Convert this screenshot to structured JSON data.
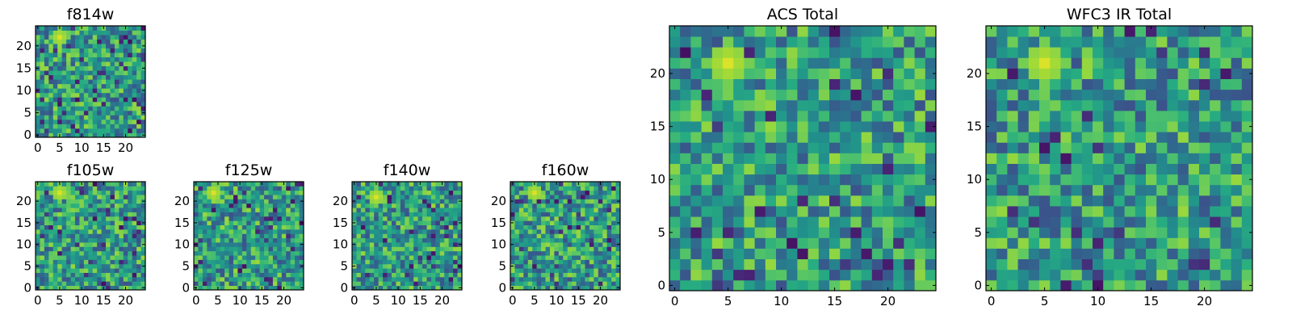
{
  "chart_data": [
    {
      "type": "heatmap",
      "id": "f814w",
      "title": "f814w",
      "grid_size": 25,
      "xlim": [
        -0.5,
        24.5
      ],
      "ylim": [
        -0.5,
        24.5
      ],
      "xticks": [
        0,
        5,
        10,
        15,
        20
      ],
      "yticks": [
        0,
        5,
        10,
        15,
        20
      ],
      "colormap": "viridis",
      "bright_spot": {
        "x": 5,
        "y": 22
      },
      "seed": 814
    },
    {
      "type": "heatmap",
      "id": "f105w",
      "title": "f105w",
      "grid_size": 25,
      "xlim": [
        -0.5,
        24.5
      ],
      "ylim": [
        -0.5,
        24.5
      ],
      "xticks": [
        0,
        5,
        10,
        15,
        20
      ],
      "yticks": [
        0,
        5,
        10,
        15,
        20
      ],
      "colormap": "viridis",
      "bright_spot": {
        "x": 5,
        "y": 22
      },
      "seed": 105
    },
    {
      "type": "heatmap",
      "id": "f125w",
      "title": "f125w",
      "grid_size": 25,
      "xlim": [
        -0.5,
        24.5
      ],
      "ylim": [
        -0.5,
        24.5
      ],
      "xticks": [
        0,
        5,
        10,
        15,
        20
      ],
      "yticks": [
        0,
        5,
        10,
        15,
        20
      ],
      "colormap": "viridis",
      "bright_spot": {
        "x": 4,
        "y": 22
      },
      "seed": 125
    },
    {
      "type": "heatmap",
      "id": "f140w",
      "title": "f140w",
      "grid_size": 25,
      "xlim": [
        -0.5,
        24.5
      ],
      "ylim": [
        -0.5,
        24.5
      ],
      "xticks": [
        0,
        5,
        10,
        15,
        20
      ],
      "yticks": [
        0,
        5,
        10,
        15,
        20
      ],
      "colormap": "viridis",
      "bright_spot": {
        "x": 5,
        "y": 21
      },
      "seed": 140
    },
    {
      "type": "heatmap",
      "id": "f160w",
      "title": "f160w",
      "grid_size": 25,
      "xlim": [
        -0.5,
        24.5
      ],
      "ylim": [
        -0.5,
        24.5
      ],
      "xticks": [
        0,
        5,
        10,
        15,
        20
      ],
      "yticks": [
        0,
        5,
        10,
        15,
        20
      ],
      "colormap": "viridis",
      "bright_spot": {
        "x": 5,
        "y": 22
      },
      "seed": 160
    },
    {
      "type": "heatmap",
      "id": "acs-total",
      "title": "ACS Total",
      "grid_size": 25,
      "xlim": [
        -0.5,
        24.5
      ],
      "ylim": [
        -0.5,
        24.5
      ],
      "xticks": [
        0,
        5,
        10,
        15,
        20
      ],
      "yticks": [
        0,
        5,
        10,
        15,
        20
      ],
      "colormap": "viridis",
      "bright_spot": {
        "x": 5,
        "y": 21
      },
      "seed": 901
    },
    {
      "type": "heatmap",
      "id": "wfc3-ir-total",
      "title": "WFC3 IR Total",
      "grid_size": 25,
      "xlim": [
        -0.5,
        24.5
      ],
      "ylim": [
        -0.5,
        24.5
      ],
      "xticks": [
        0,
        5,
        10,
        15,
        20
      ],
      "yticks": [
        0,
        5,
        10,
        15,
        20
      ],
      "colormap": "viridis",
      "bright_spot": {
        "x": 5,
        "y": 21
      },
      "seed": 902
    }
  ]
}
